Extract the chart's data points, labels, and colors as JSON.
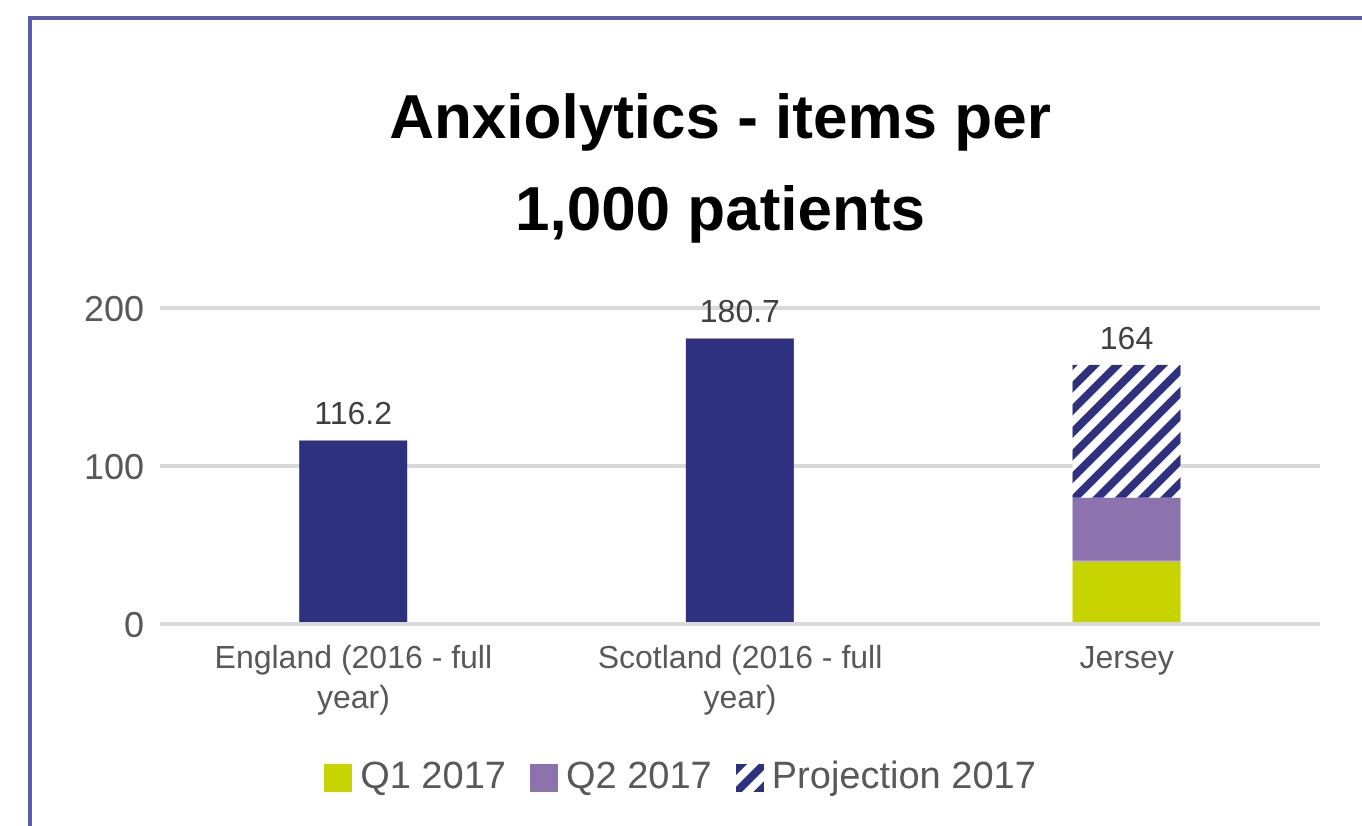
{
  "chart_data": {
    "type": "bar",
    "title": "Anxiolytics - items per 1,000 patients",
    "categories": [
      "England (2016 - full year)",
      "Scotland (2016 - full year)",
      "Jersey"
    ],
    "stacked": true,
    "series": [
      {
        "color": "#2e3080",
        "values": [
          116.2,
          180.7,
          null
        ],
        "value_labels": [
          "116.2",
          "180.7",
          null
        ]
      },
      {
        "name": "Q1 2017",
        "color": "#c8d400",
        "values": [
          null,
          null,
          40
        ]
      },
      {
        "name": "Q2 2017",
        "color": "#8d73ad",
        "values": [
          null,
          null,
          40
        ]
      },
      {
        "name": "Projection 2017",
        "color": "#2e3080",
        "values": [
          null,
          null,
          84
        ]
      }
    ],
    "totals": [
      null,
      null,
      "164"
    ],
    "ylim": [
      0,
      200
    ],
    "yticks": [
      0,
      100,
      200
    ],
    "grid": "y",
    "legend": "bottom"
  }
}
